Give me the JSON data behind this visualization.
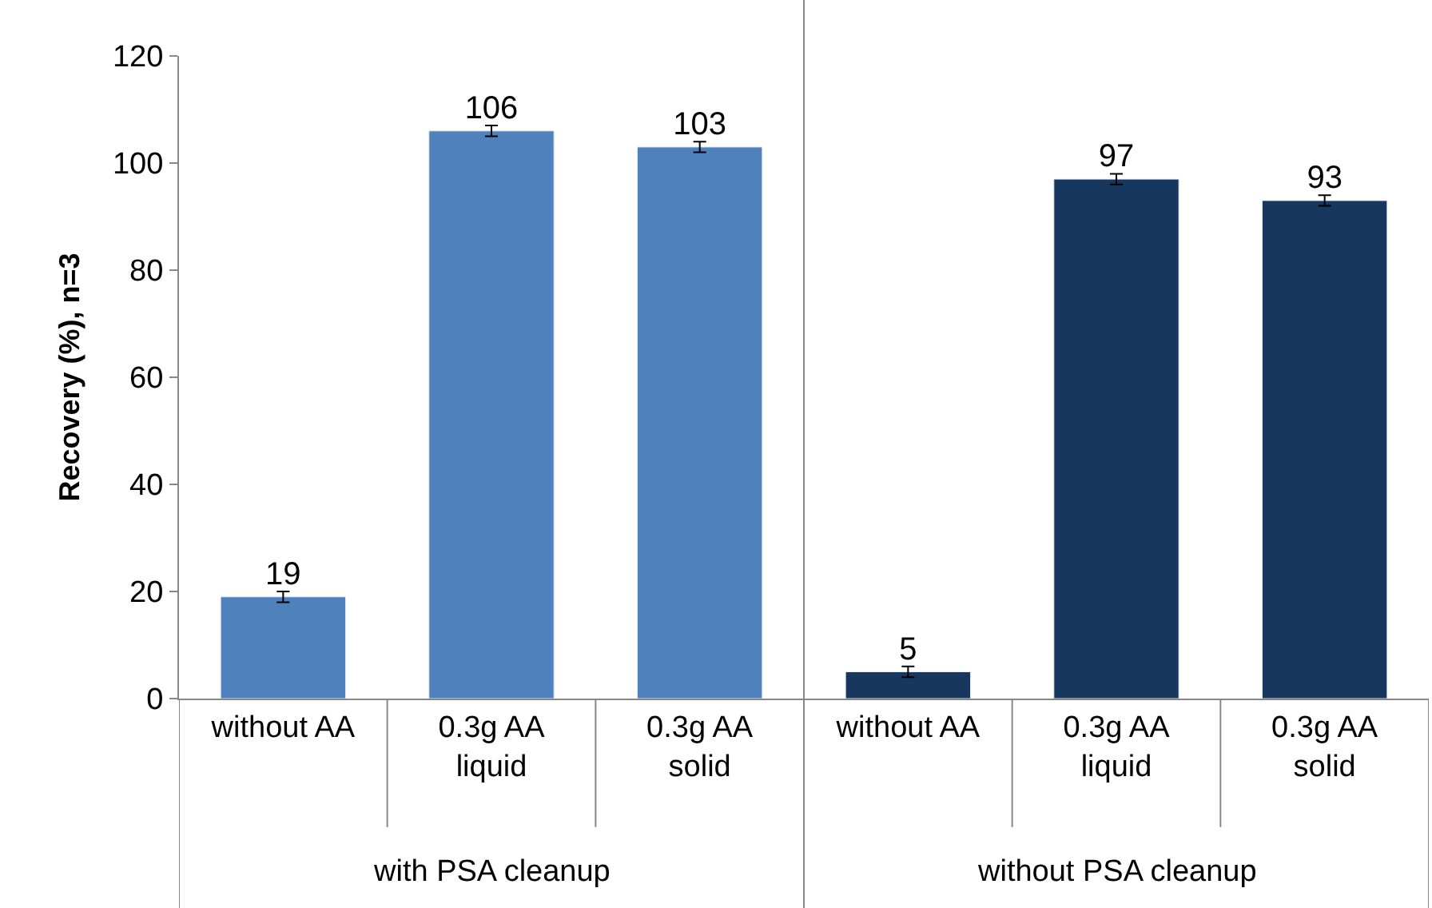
{
  "chart_data": {
    "type": "bar",
    "ylabel": "Recovery (%), n=3",
    "categories": [
      "without AA",
      "0.3g AA liquid",
      "0.3g AA solid",
      "without AA",
      "0.3g AA liquid",
      "0.3g AA solid"
    ],
    "values": [
      19,
      106,
      103,
      5,
      97,
      93
    ],
    "errors": [
      1,
      1,
      1,
      1,
      1,
      1
    ],
    "colors": [
      "#4f81bd",
      "#4f81bd",
      "#4f81bd",
      "#17375e",
      "#17375e",
      "#17375e"
    ],
    "ylim": [
      0,
      120
    ],
    "yticks": [
      0,
      20,
      40,
      60,
      80,
      100,
      120
    ],
    "data_labels": true,
    "legend": false,
    "annotations": [
      "with PSA cleanup",
      "without PSA cleanup"
    ]
  }
}
